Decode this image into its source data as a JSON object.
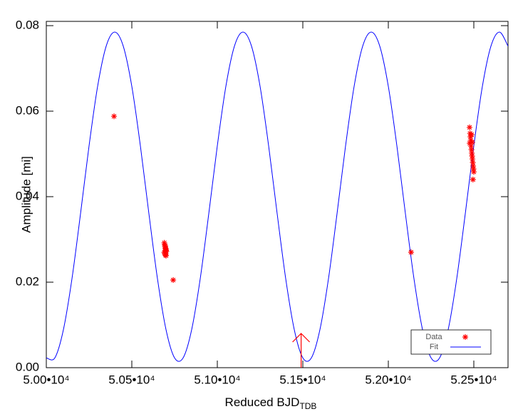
{
  "chart_data": {
    "type": "scatter",
    "xlabel": "Reduced BJD",
    "xlabel_sub": "TDB",
    "ylabel": "Amplitude [mi]",
    "xlim": [
      50000,
      52700
    ],
    "ylim": [
      0,
      0.081
    ],
    "xticks": [
      {
        "value": 50000,
        "label": "5.00•10⁴"
      },
      {
        "value": 50500,
        "label": "5.05•10⁴"
      },
      {
        "value": 51000,
        "label": "5.10•10⁴"
      },
      {
        "value": 51500,
        "label": "5.15•10⁴"
      },
      {
        "value": 52000,
        "label": "5.20•10⁴"
      },
      {
        "value": 52500,
        "label": "5.25•10⁴"
      }
    ],
    "yticks": [
      {
        "value": 0,
        "label": "0.00"
      },
      {
        "value": 0.02,
        "label": "0.02"
      },
      {
        "value": 0.04,
        "label": "0.04"
      },
      {
        "value": 0.06,
        "label": "0.06"
      },
      {
        "value": 0.08,
        "label": "0.08"
      }
    ],
    "legend": "lower right",
    "series": [
      {
        "name": "Data",
        "color": "#ff0000",
        "marker": "asterisk",
        "x": [
          50396,
          50690,
          50692,
          50694,
          50696,
          50698,
          50700,
          50690,
          50693,
          50697,
          50700,
          50702,
          50695,
          50699,
          50742,
          52133,
          52475,
          52478,
          52480,
          52482,
          52476,
          52484,
          52486,
          52488,
          52490,
          52492,
          52494,
          52496,
          52498,
          52500,
          52495,
          52487,
          52491
        ],
        "values": [
          0.0588,
          0.0292,
          0.0288,
          0.0284,
          0.028,
          0.0277,
          0.0274,
          0.027,
          0.0267,
          0.0264,
          0.0262,
          0.0272,
          0.0285,
          0.0278,
          0.0205,
          0.027,
          0.0562,
          0.0548,
          0.054,
          0.0532,
          0.0525,
          0.0518,
          0.051,
          0.0502,
          0.0495,
          0.0488,
          0.048,
          0.0472,
          0.0465,
          0.0458,
          0.044,
          0.0545,
          0.0527
        ],
        "upper_limits": {
          "x": [
            51490
          ],
          "values": [
            0.008
          ]
        }
      },
      {
        "name": "Fit",
        "color": "#0000ff",
        "marker": "line",
        "x": [
          50000,
          50050,
          50100,
          50150,
          50200,
          50250,
          50300,
          50350,
          50400,
          50450,
          50500,
          50550,
          50600,
          50650,
          50700,
          50750,
          50800,
          50850,
          50900,
          50950,
          51000,
          51050,
          51100,
          51150,
          51200,
          51250,
          51300,
          51350,
          51400,
          51450,
          51500,
          51550,
          51600,
          51650,
          51700,
          51750,
          51800,
          51850,
          51900,
          51950,
          52000,
          52050,
          52100,
          52150,
          52200,
          52250,
          52300,
          52350,
          52400,
          52450,
          52500,
          52550,
          52600,
          52650,
          52700
        ],
        "values": [
          0.0023,
          0.0023,
          0.0089,
          0.0208,
          0.036,
          0.0519,
          0.0658,
          0.0752,
          0.0785,
          0.0752,
          0.0658,
          0.0519,
          0.036,
          0.0208,
          0.0089,
          0.0023,
          0.0023,
          0.0089,
          0.0208,
          0.036,
          0.0519,
          0.0658,
          0.0752,
          0.0785,
          0.0752,
          0.0658,
          0.0519,
          0.036,
          0.0208,
          0.0089,
          0.0023,
          0.0023,
          0.0089,
          0.0208,
          0.036,
          0.0519,
          0.0658,
          0.0752,
          0.0785,
          0.0752,
          0.0658,
          0.0519,
          0.036,
          0.0208,
          0.0089,
          0.0023,
          0.0023,
          0.0089,
          0.0208,
          0.036,
          0.0519,
          0.0658,
          0.0752,
          0.0785,
          0.0752
        ]
      }
    ]
  }
}
